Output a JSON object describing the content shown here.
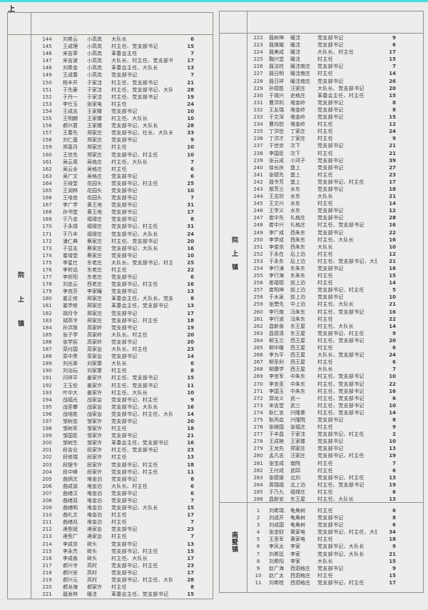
{
  "page": {
    "corner_label": "上",
    "accent_color": "#48dedd",
    "border_color": "#8f8f8f"
  },
  "left_table": {
    "group_label": "院上镇",
    "rows": [
      [
        144,
        "刘希云",
        "小高岚",
        "大队长",
        6
      ],
      [
        145,
        "王成理",
        "小高岚",
        "村主任、党支部书记",
        15
      ],
      [
        146,
        "宋吉章",
        "小高岚",
        "革委会主任",
        7
      ],
      [
        147,
        "宋吉波",
        "小高岚",
        "大队长、村主任、党支部书记",
        17
      ],
      [
        148,
        "刘希金",
        "小高岚",
        "革委会主任、大队长",
        13
      ],
      [
        149,
        "王成春",
        "小高岚",
        "党支部书记",
        7
      ],
      [
        150,
        "杨丰开",
        "于家洼",
        "村主任、党支部书记",
        21
      ],
      [
        151,
        "于先豪",
        "于家洼",
        "村主任、党支部书记、大队长",
        28
      ],
      [
        152,
        "于丹一",
        "于家洼",
        "村主任、党支部书记",
        19
      ],
      [
        153,
        "李仕玉",
        "张家电",
        "村主任",
        24
      ],
      [
        154,
        "王成志",
        "王家楼",
        "党支部书记",
        10
      ],
      [
        155,
        "王明朗",
        "王家楼",
        "村主任、大队长",
        10
      ],
      [
        156,
        "郝兴君",
        "王家楼",
        "党支部书记、大队长",
        28
      ],
      [
        157,
        "王春先",
        "郑家庄",
        "党支部书记、社长、大队长",
        33
      ],
      [
        158,
        "刘仁基",
        "郑家庄",
        "党支部书记",
        9
      ],
      [
        159,
        "郑喜月",
        "郑家庄",
        "村主任",
        10
      ],
      [
        160,
        "王信先",
        "郑家庄",
        "党支部书记、村主任",
        10
      ],
      [
        161,
        "吴云周",
        "吴格庄",
        "村主任、大队长",
        7
      ],
      [
        162,
        "吴云全",
        "吴格庄",
        "村主任",
        6
      ],
      [
        163,
        "吴广文",
        "吴格庄",
        "党支部书记",
        6
      ],
      [
        164,
        "王岐堂",
        "花园头",
        "党支部书记、村主任",
        25
      ],
      [
        165,
        "王润林",
        "花园头",
        "党支部书记",
        10
      ],
      [
        166,
        "王培良",
        "花园头",
        "党支部书记",
        7
      ],
      [
        167,
        "李广学",
        "黄王地",
        "党支部书记",
        31
      ],
      [
        168,
        "孙书堂",
        "黄王地",
        "党支部书记",
        17
      ],
      [
        169,
        "于乃忠",
        "福禄庄",
        "党支部书记",
        8
      ],
      [
        170,
        "于永靖",
        "福禄庄",
        "党支部书记、村主任",
        31
      ],
      [
        171,
        "于乃丰",
        "福禄庄",
        "党支部书记、大队长",
        24
      ],
      [
        172,
        "潘仁典",
        "蔡家庄",
        "村主任、党支部书记",
        20
      ],
      [
        173,
        "于显志",
        "蔡家庄",
        "党支部书记、大队长",
        16
      ],
      [
        174,
        "娄增堂",
        "蔡家庄",
        "党支部书记",
        10
      ],
      [
        175,
        "李星仕",
        "东老庄",
        "大队长、党支部书记、村主任",
        25
      ],
      [
        176,
        "李祈远",
        "东老庄",
        "村主任",
        22
      ],
      [
        177,
        "李祈阳",
        "东老庄",
        "党支部书记",
        6
      ],
      [
        178,
        "刘忠云",
        "西老庄",
        "党支部书记、村主任",
        16
      ],
      [
        179,
        "李克芬",
        "李家疃",
        "党支部书记",
        13
      ],
      [
        180,
        "娄正修",
        "邢家庄",
        "革委会主任、大队长、党支部书记",
        8
      ],
      [
        181,
        "娄学修",
        "邢家庄",
        "革委会主任、党支部书记",
        13
      ],
      [
        182,
        "胡月令",
        "邢家庄",
        "党支部书记",
        17
      ],
      [
        183,
        "胡高令",
        "邢家庄",
        "党支部书记、村主任",
        18
      ],
      [
        184,
        "孙洪珠",
        "高家岭",
        "党支部书记",
        19
      ],
      [
        185,
        "张子学",
        "高家岭",
        "大队长、村主任",
        20
      ],
      [
        186,
        "张学民",
        "高家岭",
        "党支部书记",
        20
      ],
      [
        187,
        "栾付国",
        "栾家会",
        "大队长、村主任",
        23
      ],
      [
        188,
        "栾中贵",
        "栾家会",
        "党支部书记",
        14
      ],
      [
        189,
        "刘光翠",
        "刘家寨",
        "大队长",
        6
      ],
      [
        190,
        "刘治玩",
        "刘家寨",
        "村主任",
        8
      ],
      [
        191,
        "闫祥平",
        "姜家许",
        "村主任、党支部书记",
        15
      ],
      [
        192,
        "王玉伦",
        "姜家许",
        "村主任、党支部书记",
        11
      ],
      [
        193,
        "叶中大",
        "姜家许",
        "村主任、大队长",
        10
      ],
      [
        194,
        "战福光",
        "战家会",
        "党支部书记、村主任",
        9
      ],
      [
        195,
        "战圣攀",
        "战家会",
        "党支部书记、大队长",
        16
      ],
      [
        196,
        "战培胜",
        "战家会",
        "党支部书记、村主任、大队长",
        14
      ],
      [
        197,
        "邹树忠",
        "邹家许",
        "党支部书记",
        20
      ],
      [
        198,
        "邹树军",
        "邹家许",
        "村主任",
        18
      ],
      [
        199,
        "邹国臣",
        "邹家许",
        "党支部书记",
        21
      ],
      [
        200,
        "邹树生",
        "邹家许",
        "革委会主任、党支部书记",
        16
      ],
      [
        201,
        "段吉业",
        "段家许",
        "村主任、党支部书记",
        23
      ],
      [
        202,
        "段修瑞",
        "段家许",
        "村主任",
        13
      ],
      [
        203,
        "段银令",
        "段家许",
        "党支部书记、村主任",
        18
      ],
      [
        204,
        "段中峰",
        "段家许",
        "党支部书记、村主任",
        11
      ],
      [
        205,
        "曲炳文",
        "堆金泊",
        "党支部书记",
        8
      ],
      [
        206,
        "曲成滋",
        "堆金泊",
        "大队长、村主任",
        6
      ],
      [
        207,
        "曲绪汉",
        "堆金泊",
        "党支部书记",
        6
      ],
      [
        208,
        "曲绪双",
        "堆金泊",
        "党支部书记",
        7
      ],
      [
        209,
        "曲绪明",
        "堆金泊",
        "党支部书记、大队长",
        15
      ],
      [
        210,
        "曲礼文",
        "堆金泊",
        "村主任",
        17
      ],
      [
        211,
        "曲绪兆",
        "堆金泊",
        "村主任",
        7
      ],
      [
        212,
        "逄型斌",
        "逄家会",
        "党支部书记",
        23
      ],
      [
        213,
        "逄型广",
        "逄家会",
        "村主任",
        7
      ],
      [
        214,
        "李成京",
        "砖头",
        "党支部书记",
        13
      ],
      [
        215,
        "李永杰",
        "砖头",
        "党支部书记、村主任",
        15
      ],
      [
        216,
        "李成香",
        "砖头",
        "村主任、大队长",
        17
      ],
      [
        217,
        "郝兴令",
        "高村",
        "党支部书记、村主任",
        23
      ],
      [
        218,
        "郝兴安",
        "高村",
        "党支部书记",
        17
      ],
      [
        219,
        "郝兴元",
        "高村",
        "党支部书记、村主任、大队长",
        28
      ],
      [
        220,
        "郝龙海",
        "郝家许",
        "村主任",
        8
      ],
      [
        221,
        "聂发林",
        "暖洼",
        "革委会主任、党支部书记",
        15
      ]
    ]
  },
  "right_table": {
    "sections": [
      {
        "group_label": "院上镇",
        "rows": [
          [
            222,
            "聂树坤",
            "暖洼",
            "党支部书记",
            9
          ],
          [
            223,
            "聂焕耀",
            "暖洼",
            "党支部书记",
            6
          ],
          [
            224,
            "聂美成",
            "暖洼",
            "大队长、村主任",
            17
          ],
          [
            225,
            "鞠兴堂",
            "暖洼",
            "村主任",
            15
          ],
          [
            226,
            "聂法柱",
            "暖洼南庄",
            "党支部书记",
            7
          ],
          [
            227,
            "聂日明",
            "暖洼南庄",
            "村主任",
            14
          ],
          [
            228,
            "聂日祥",
            "暖洼南庄",
            "党支部书记",
            26
          ],
          [
            229,
            "孙德胜",
            "汪家庄",
            "大队长、党支部书记",
            20
          ],
          [
            230,
            "于锡兴",
            "史格庄",
            "革委会主任、村主任",
            15
          ],
          [
            231,
            "曹洪利",
            "堆金岭",
            "党支部书记",
            8
          ],
          [
            232,
            "王友瑞",
            "堆金岭",
            "党支部书记",
            8
          ],
          [
            233,
            "于文深",
            "堆金岭",
            "党支部书记",
            15
          ],
          [
            234,
            "曹均恕",
            "堆金岭",
            "村主任",
            12
          ],
          [
            235,
            "丁洪俭",
            "丁家庄",
            "村主任",
            24
          ],
          [
            236,
            "丁洪才",
            "丁家庄",
            "村主任",
            9
          ],
          [
            237,
            "于世京",
            "次下",
            "党支部书记",
            21
          ],
          [
            238,
            "李国臣",
            "次下",
            "村主任",
            21
          ],
          [
            239,
            "张云成",
            "小河子",
            "党支部书记",
            39
          ],
          [
            240,
            "徐长庆",
            "堡上",
            "党支部书记",
            27
          ],
          [
            241,
            "张德先",
            "堡上",
            "村主任",
            23
          ],
          [
            242,
            "聂令芳",
            "堡上",
            "党支部书记、村主任",
            17
          ],
          [
            243,
            "鄢芳兰",
            "水东",
            "党支部书记",
            18
          ],
          [
            244,
            "王志欣",
            "水东",
            "大队长",
            21
          ],
          [
            245,
            "王文兴",
            "水东",
            "村主任",
            14
          ],
          [
            246,
            "王学义",
            "水东",
            "党支部书记",
            12
          ],
          [
            247,
            "崔中先",
            "礼格庄",
            "党支部书记",
            28
          ],
          [
            248,
            "崔中兴",
            "礼格庄",
            "村主任、党支部书记",
            16
          ],
          [
            249,
            "李广成",
            "西朱东",
            "党支部书记",
            22
          ],
          [
            250,
            "李学成",
            "西朱东",
            "村主任、大队长",
            16
          ],
          [
            251,
            "李俊京",
            "西朱东",
            "大队长",
            10
          ],
          [
            252,
            "于永在",
            "后上泊",
            "村主任",
            12
          ],
          [
            253,
            "于永东",
            "后上泊",
            "村主任、党支部书记、大队长",
            21
          ],
          [
            254,
            "李行涛",
            "东朱东",
            "党支部书记",
            16
          ],
          [
            255,
            "李行海",
            "东朱东",
            "村主任",
            15
          ],
          [
            256,
            "崔福德",
            "前上泊",
            "村主任",
            14
          ],
          [
            257,
            "崔明坤",
            "前上泊",
            "党支部书记、村主任",
            5
          ],
          [
            258,
            "于水泉",
            "前上泊",
            "党支部书记",
            10
          ],
          [
            259,
            "张懋先",
            "中上泊",
            "村主任、大队长",
            21
          ],
          [
            260,
            "李行南",
            "冯朱东",
            "村主任、党支部书记",
            16
          ],
          [
            261,
            "李行波",
            "冯朱东",
            "村主任",
            22
          ],
          [
            262,
            "昌新香",
            "东王屋",
            "村主任、大队长",
            14
          ],
          [
            263,
            "昌德清",
            "东王屋",
            "党支部书记、村主任",
            9
          ],
          [
            264,
            "柳玉兰",
            "西王屋",
            "村主任、党支部书记",
            20
          ],
          [
            265,
            "柳中暖",
            "西王屋",
            "村主任",
            6
          ],
          [
            266,
            "李为平",
            "西王屋",
            "大队长、党支部书记",
            24
          ],
          [
            267,
            "柳圣利",
            "西王屋",
            "村主任",
            6
          ],
          [
            268,
            "柳康学",
            "西王屋",
            "大队长",
            7
          ],
          [
            269,
            "李言军",
            "中朱东",
            "村主任、党支部书记",
            10
          ],
          [
            270,
            "李言圣",
            "中朱东",
            "村主任、党支部书记",
            22
          ],
          [
            271,
            "李国玉",
            "中朱东",
            "村主任、党支部书记",
            16
          ],
          [
            272,
            "郭龙义",
            "武一",
            "村主任、党支部书记",
            6
          ],
          [
            273,
            "宋吉堂",
            "武三",
            "村主任、党支部书记",
            10
          ],
          [
            274,
            "耿仁忠",
            "兴隆寨",
            "村主任、党支部书记",
            14
          ],
          [
            275,
            "耿丙启",
            "兴隆院",
            "党支部书记",
            8
          ],
          [
            276,
            "张继国",
            "张福庄",
            "村主任",
            9
          ],
          [
            277,
            "于丰昌",
            "于家洼",
            "党支部书记、村主任",
            2
          ],
          [
            278,
            "王成艳",
            "王家楼",
            "党支部书记",
            10
          ],
          [
            279,
            "王龙先",
            "郑家庄",
            "党支部书记",
            13
          ],
          [
            280,
            "孟凡志",
            "汪家庄",
            "党支部书记、村主任",
            19
          ],
          [
            281,
            "张宝成",
            "南院",
            "村主任",
            7
          ],
          [
            282,
            "王付成",
            "武四",
            "村主任",
            6
          ],
          [
            283,
            "张德棠",
            "北刘",
            "党支部书记、村主任",
            13
          ],
          [
            284,
            "周瑞福",
            "北上泊",
            "村主任、党支部书记",
            19
          ],
          [
            285,
            "于乃九",
            "福禄庄",
            "村主任",
            6
          ],
          [
            286,
            "昌新安",
            "东王屋",
            "村主任、大队长",
            13
          ]
        ]
      },
      {
        "group_label": "南墅镇",
        "rows": [
          [
            1,
            "刘希瑞",
            "龟角树",
            "村主任",
            6
          ],
          [
            2,
            "刘成开",
            "龟角树",
            "党支部书记",
            8
          ],
          [
            3,
            "刘成国",
            "龟角树",
            "党支部书记",
            6
          ],
          [
            4,
            "张忠财",
            "黄家电",
            "党支部书记、村主任、大队长",
            34
          ],
          [
            5,
            "王圣军",
            "黄家电",
            "村主任",
            18
          ],
          [
            6,
            "李风太",
            "李家",
            "党支部书记、大队长",
            9
          ],
          [
            7,
            "刘希廷",
            "李家",
            "党支部书记、大队长",
            21
          ],
          [
            8,
            "刘希阳",
            "李家",
            "大队长",
            15
          ],
          [
            9,
            "赵广海",
            "西泗格庄",
            "党支部书记",
            9
          ],
          [
            10,
            "赵广太",
            "西泗格庄",
            "村主任",
            15
          ],
          [
            11,
            "刘希桂",
            "西泗格庄",
            "党支部书记、村主任",
            17
          ]
        ]
      }
    ]
  }
}
